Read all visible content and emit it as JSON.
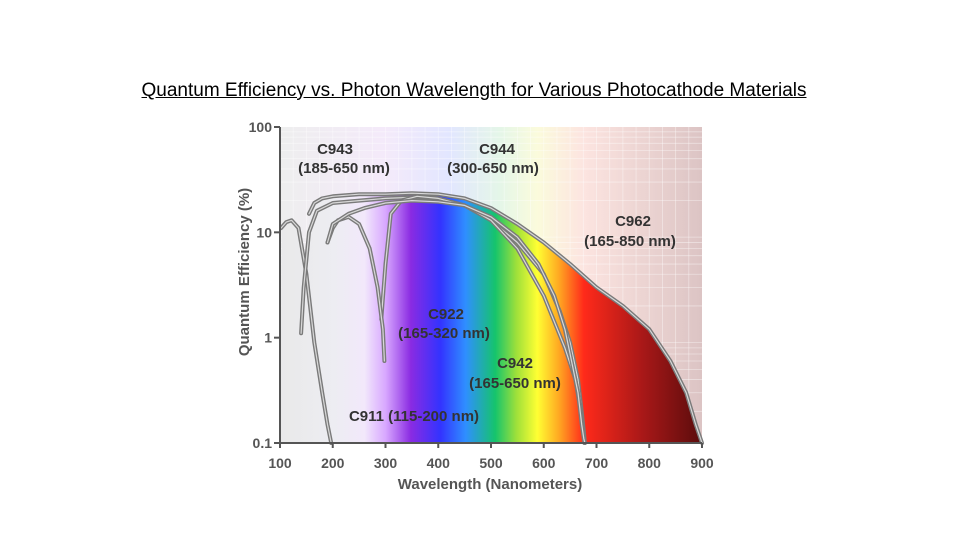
{
  "slide": {
    "title": "Quantum Efficiency vs. Photon Wavelength for Various Photocathode Materials"
  },
  "chart_data": {
    "type": "line",
    "xlabel": "Wavelength (Nanometers)",
    "ylabel": "Quantum Efficiency (%)",
    "xlim": [
      100,
      900
    ],
    "ylim": [
      0.1,
      100
    ],
    "yscale": "log",
    "x_ticks": [
      "100",
      "200",
      "300",
      "400",
      "500",
      "600",
      "700",
      "800",
      "900"
    ],
    "y_ticks": [
      "0.1",
      "1",
      "10",
      "100"
    ],
    "grid": true,
    "background": "visible-spectrum gradient",
    "series": [
      {
        "name": "C911",
        "range_label": "C911 (115-200 nm)",
        "x": [
          102,
          112,
          122,
          135,
          150,
          165,
          180,
          190,
          197
        ],
        "y": [
          11,
          12.5,
          13,
          11,
          4,
          0.9,
          0.3,
          0.15,
          0.1
        ]
      },
      {
        "name": "C943",
        "range_label": "(185-650 nm)",
        "x": [
          140,
          145,
          155,
          170,
          200,
          250,
          300,
          350,
          400,
          450,
          500,
          550,
          600,
          630,
          650,
          665,
          672,
          676,
          678
        ],
        "y": [
          1.1,
          3,
          10,
          16,
          19,
          20,
          21,
          21.5,
          21,
          18,
          13,
          8,
          4,
          1.8,
          0.9,
          0.4,
          0.2,
          0.13,
          0.1
        ]
      },
      {
        "name": "C944",
        "range_label": "(300-650 nm)",
        "x": [
          292,
          300,
          310,
          330,
          360,
          400,
          450,
          500,
          550,
          600,
          640,
          660,
          670,
          677
        ],
        "y": [
          1.5,
          5,
          15,
          20,
          22,
          21,
          18,
          13,
          7,
          2.5,
          0.8,
          0.4,
          0.2,
          0.1
        ]
      },
      {
        "name": "C962",
        "range_label": "(165-850 nm)",
        "x": [
          155,
          165,
          180,
          200,
          250,
          300,
          350,
          400,
          450,
          500,
          550,
          600,
          650,
          700,
          750,
          800,
          840,
          870,
          888,
          900
        ],
        "y": [
          15,
          19,
          21,
          22,
          23,
          23,
          23.5,
          23,
          21,
          17,
          12,
          8,
          5,
          3,
          2,
          1.2,
          0.6,
          0.3,
          0.15,
          0.1
        ]
      },
      {
        "name": "C922",
        "range_label": "(165-320 nm)",
        "x": [
          190,
          200,
          210,
          230,
          250,
          270,
          285,
          295,
          298
        ],
        "y": [
          8,
          11,
          13,
          14,
          12,
          7,
          3,
          1.2,
          0.6
        ]
      },
      {
        "name": "C942",
        "range_label": "(165-650 nm)",
        "x": [
          190,
          200,
          230,
          260,
          300,
          350,
          400,
          450,
          500,
          550,
          590,
          620,
          640,
          650,
          665,
          672,
          676,
          678
        ],
        "y": [
          8,
          12,
          15,
          17,
          19,
          20,
          19.5,
          18,
          14,
          9,
          5,
          2.5,
          1.2,
          0.7,
          0.3,
          0.15,
          0.11,
          0.1
        ]
      }
    ]
  },
  "labels": {
    "c943_name": "C943",
    "c943_range": "(185-650 nm)",
    "c944_name": "C944",
    "c944_range": "(300-650 nm)",
    "c962_name": "C962",
    "c962_range": "(165-850 nm)",
    "c922_name": "C922",
    "c922_range": "(165-320 nm)",
    "c942_name": "C942",
    "c942_range": "(165-650 nm)",
    "c911": "C911 (115-200 nm)"
  },
  "colors": {
    "curve": "#7a7a7a",
    "curve_highlight": "#d8d8d8",
    "axis": "#555555",
    "grid": "#ffffff"
  }
}
